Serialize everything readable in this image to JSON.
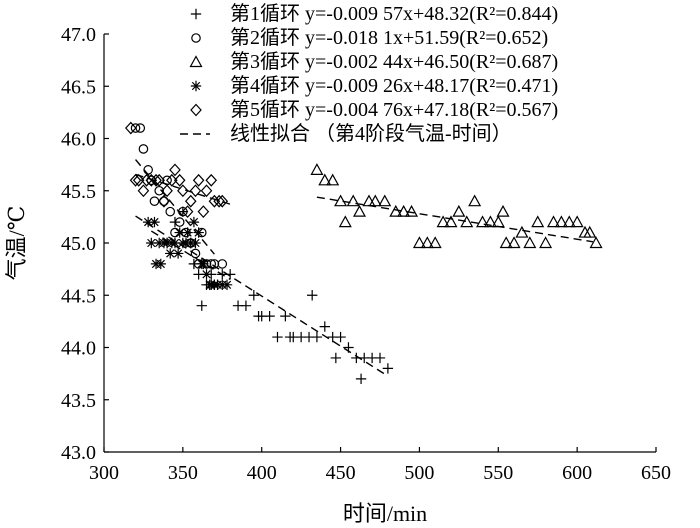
{
  "chart_data": {
    "type": "scatter",
    "xlabel": "时间/min",
    "ylabel": "气温/℃",
    "xlim": [
      300,
      650
    ],
    "ylim": [
      43.0,
      47.0
    ],
    "xticks": [
      300,
      350,
      400,
      450,
      500,
      550,
      600,
      650
    ],
    "yticks": [
      "43.0",
      "43.5",
      "44.0",
      "44.5",
      "45.0",
      "45.5",
      "46.0",
      "46.5",
      "47.0"
    ],
    "grid": false,
    "legend_position": "top-right",
    "series": [
      {
        "name": "第1循环",
        "marker": "plus",
        "equation": "y=-0.009 57x+48.32(R²=0.844)",
        "fit": {
          "slope": -0.00957,
          "intercept": 48.32,
          "x_range": [
            320,
            480
          ]
        },
        "x": [
          340,
          345,
          350,
          355,
          357,
          360,
          362,
          365,
          368,
          370,
          372,
          375,
          380,
          385,
          390,
          395,
          398,
          400,
          405,
          410,
          415,
          418,
          420,
          425,
          430,
          432,
          435,
          440,
          445,
          447,
          450,
          455,
          460,
          463,
          465,
          470,
          475,
          480
        ],
        "y": [
          45.0,
          45.2,
          45.3,
          45.0,
          44.8,
          44.7,
          44.4,
          44.6,
          44.7,
          44.6,
          44.6,
          44.7,
          44.7,
          44.4,
          44.4,
          44.5,
          44.3,
          44.3,
          44.3,
          44.1,
          44.3,
          44.1,
          44.1,
          44.1,
          44.1,
          44.5,
          44.1,
          44.2,
          44.1,
          43.9,
          44.1,
          44.0,
          43.9,
          43.7,
          43.9,
          43.9,
          43.9,
          43.8
        ]
      },
      {
        "name": "第2循环",
        "marker": "circle",
        "equation": "y=-0.018 1x+51.59(R²=0.652)",
        "fit": {
          "slope": -0.0181,
          "intercept": 51.59,
          "x_range": [
            320,
            370
          ]
        },
        "x": [
          320,
          325,
          328,
          330,
          332,
          335,
          338,
          340,
          342,
          345,
          348,
          350,
          352,
          355,
          358,
          360,
          362,
          365,
          368,
          370,
          375,
          323
        ],
        "y": [
          46.1,
          45.9,
          45.7,
          45.6,
          45.4,
          45.5,
          45.4,
          45.6,
          45.3,
          45.1,
          45.2,
          45.3,
          45.1,
          45.0,
          44.9,
          44.8,
          45.1,
          44.8,
          44.8,
          44.8,
          44.8,
          46.1
        ]
      },
      {
        "name": "第3循环",
        "marker": "triangle",
        "equation": "y=-0.002 44x+46.50(R²=0.687)",
        "fit": {
          "slope": -0.00244,
          "intercept": 46.5,
          "x_range": [
            435,
            610
          ]
        },
        "x": [
          435,
          440,
          445,
          450,
          453,
          458,
          462,
          468,
          472,
          478,
          485,
          490,
          495,
          500,
          505,
          510,
          515,
          520,
          525,
          530,
          535,
          540,
          545,
          550,
          553,
          555,
          560,
          565,
          570,
          575,
          580,
          585,
          590,
          595,
          600,
          605,
          608,
          612
        ],
        "y": [
          45.7,
          45.6,
          45.6,
          45.4,
          45.2,
          45.4,
          45.3,
          45.4,
          45.4,
          45.4,
          45.3,
          45.3,
          45.3,
          45.0,
          45.0,
          45.0,
          45.2,
          45.2,
          45.3,
          45.2,
          45.4,
          45.2,
          45.2,
          45.2,
          45.3,
          45.0,
          45.0,
          45.1,
          45.0,
          45.2,
          45.0,
          45.2,
          45.2,
          45.2,
          45.2,
          45.1,
          45.1,
          45.0
        ]
      },
      {
        "name": "第4循环",
        "marker": "asterisk",
        "equation": "y=-0.009 26x+48.17(R²=0.471)",
        "fit": {
          "slope": -0.00926,
          "intercept": 48.17,
          "x_range": [
            330,
            380
          ]
        },
        "x": [
          328,
          330,
          332,
          333,
          335,
          336,
          338,
          340,
          342,
          343,
          345,
          347,
          348,
          350,
          352,
          353,
          355,
          357,
          358,
          360,
          362,
          363,
          365,
          367,
          368,
          370,
          372,
          375,
          378
        ],
        "y": [
          45.2,
          45.0,
          45.2,
          44.8,
          45.0,
          44.8,
          45.0,
          45.0,
          44.9,
          45.0,
          45.0,
          44.9,
          45.1,
          45.0,
          45.0,
          45.1,
          45.0,
          45.2,
          45.0,
          45.1,
          44.8,
          44.8,
          44.7,
          44.6,
          44.6,
          44.6,
          44.6,
          44.6,
          44.6
        ]
      },
      {
        "name": "第5循环",
        "marker": "diamond",
        "equation": "y=-0.004 76x+47.18(R²=0.567)",
        "fit": {
          "slope": -0.00476,
          "intercept": 47.18,
          "x_range": [
            320,
            380
          ]
        },
        "x": [
          317,
          320,
          322,
          325,
          327,
          330,
          333,
          335,
          338,
          340,
          343,
          345,
          348,
          350,
          353,
          355,
          358,
          360,
          363,
          365,
          368,
          370,
          373,
          375
        ],
        "y": [
          46.1,
          45.6,
          45.6,
          45.5,
          45.6,
          45.6,
          45.6,
          45.6,
          45.4,
          45.5,
          45.6,
          45.7,
          45.6,
          45.5,
          45.3,
          45.4,
          45.5,
          45.6,
          45.3,
          45.5,
          45.6,
          45.4,
          45.4,
          45.4
        ]
      }
    ],
    "fit_line": {
      "label": "线性拟合 （第4阶段气温-时间）",
      "style": "dashed"
    }
  }
}
